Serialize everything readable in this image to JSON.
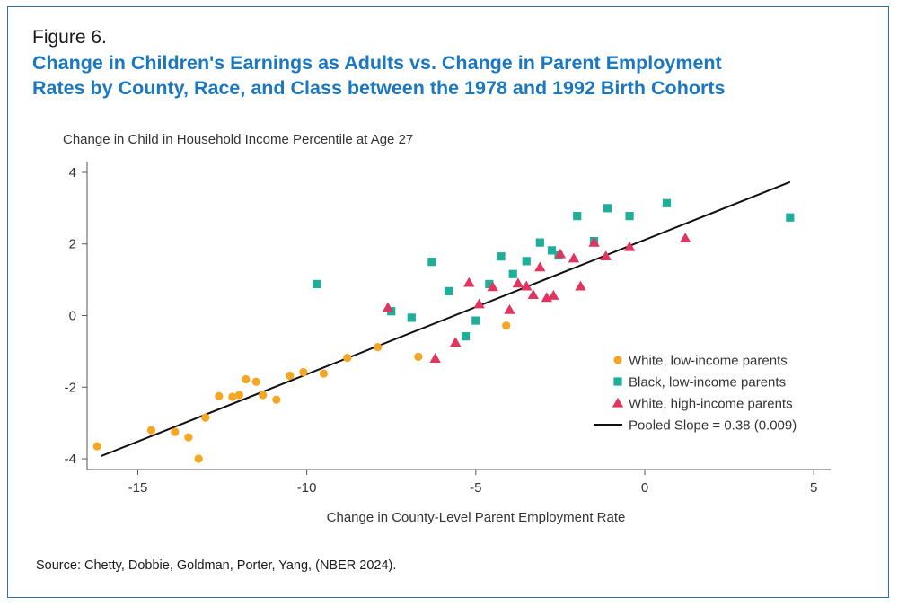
{
  "figure_label": "Figure 6.",
  "title_line1": "Change in Children's Earnings as Adults vs. Change in Parent Employment",
  "title_line2": "Rates by County, Race, and Class between the 1978 and 1992 Birth Cohorts",
  "source": "Source: Chetty, Dobbie, Goldman, Porter, Yang, (NBER 2024).",
  "colors": {
    "white_low": "#f5a623",
    "black_low": "#1fae9a",
    "white_high": "#e0355f",
    "line": "#111111",
    "title": "#1a78c2"
  },
  "chart_data": {
    "type": "scatter",
    "title": "Change in Children's Earnings as Adults vs. Change in Parent Employment Rates by County, Race, and Class between the 1978 and 1992 Birth Cohorts",
    "xlabel": "Change in County-Level Parent Employment Rate",
    "ylabel": "Change in Child in Household Income Percentile at Age 27",
    "xlim": [
      -16.5,
      5.5
    ],
    "ylim": [
      -4.3,
      4.3
    ],
    "xticks": [
      -15,
      -10,
      -5,
      0,
      5
    ],
    "xtick_labels": [
      "-15",
      "-10",
      "-5",
      "0",
      "5"
    ],
    "yticks": [
      -4,
      -2,
      0,
      2,
      4
    ],
    "ytick_labels": [
      "-4",
      "-2",
      "0",
      "2",
      "4"
    ],
    "legend_position": "right",
    "series": [
      {
        "name": "White, low-income parents",
        "marker": "circle",
        "x": [
          -16.2,
          -14.6,
          -13.9,
          -13.5,
          -13.2,
          -13.0,
          -12.6,
          -12.2,
          -12.0,
          -11.8,
          -11.5,
          -11.3,
          -10.9,
          -10.5,
          -10.1,
          -9.5,
          -8.8,
          -7.9,
          -6.7,
          -4.1
        ],
        "y": [
          -3.65,
          -3.2,
          -3.25,
          -3.4,
          -4.0,
          -2.85,
          -2.25,
          -2.27,
          -2.22,
          -1.78,
          -1.85,
          -2.22,
          -2.35,
          -1.68,
          -1.58,
          -1.62,
          -1.18,
          -0.88,
          -1.15,
          -0.28
        ]
      },
      {
        "name": "Black, low-income parents",
        "marker": "square",
        "x": [
          -9.7,
          -7.5,
          -6.9,
          -6.3,
          -5.8,
          -5.3,
          -5.0,
          -4.6,
          -4.25,
          -3.9,
          -3.5,
          -3.1,
          -2.75,
          -2.55,
          -2.0,
          -1.5,
          -1.1,
          -0.45,
          0.65,
          4.3
        ],
        "y": [
          0.88,
          0.12,
          -0.06,
          1.5,
          0.68,
          -0.58,
          -0.14,
          0.88,
          1.65,
          1.16,
          1.52,
          2.04,
          1.82,
          1.68,
          2.78,
          2.08,
          3.0,
          2.78,
          3.14,
          2.74
        ]
      },
      {
        "name": "White, high-income parents",
        "marker": "triangle",
        "x": [
          -7.6,
          -6.2,
          -5.6,
          -5.2,
          -4.9,
          -4.5,
          -4.0,
          -3.75,
          -3.5,
          -3.3,
          -3.1,
          -2.9,
          -2.7,
          -2.5,
          -2.1,
          -1.9,
          -1.5,
          -1.15,
          -0.45,
          1.2
        ],
        "y": [
          0.22,
          -1.2,
          -0.75,
          0.92,
          0.32,
          0.8,
          0.16,
          0.9,
          0.82,
          0.58,
          1.35,
          0.5,
          0.56,
          1.72,
          1.6,
          0.82,
          2.04,
          1.66,
          1.92,
          2.16
        ]
      }
    ],
    "fit_line": {
      "name": "Pooled Slope = 0.38 (0.009)",
      "x": [
        -16.1,
        4.3
      ],
      "y": [
        -3.93,
        3.73
      ]
    }
  }
}
